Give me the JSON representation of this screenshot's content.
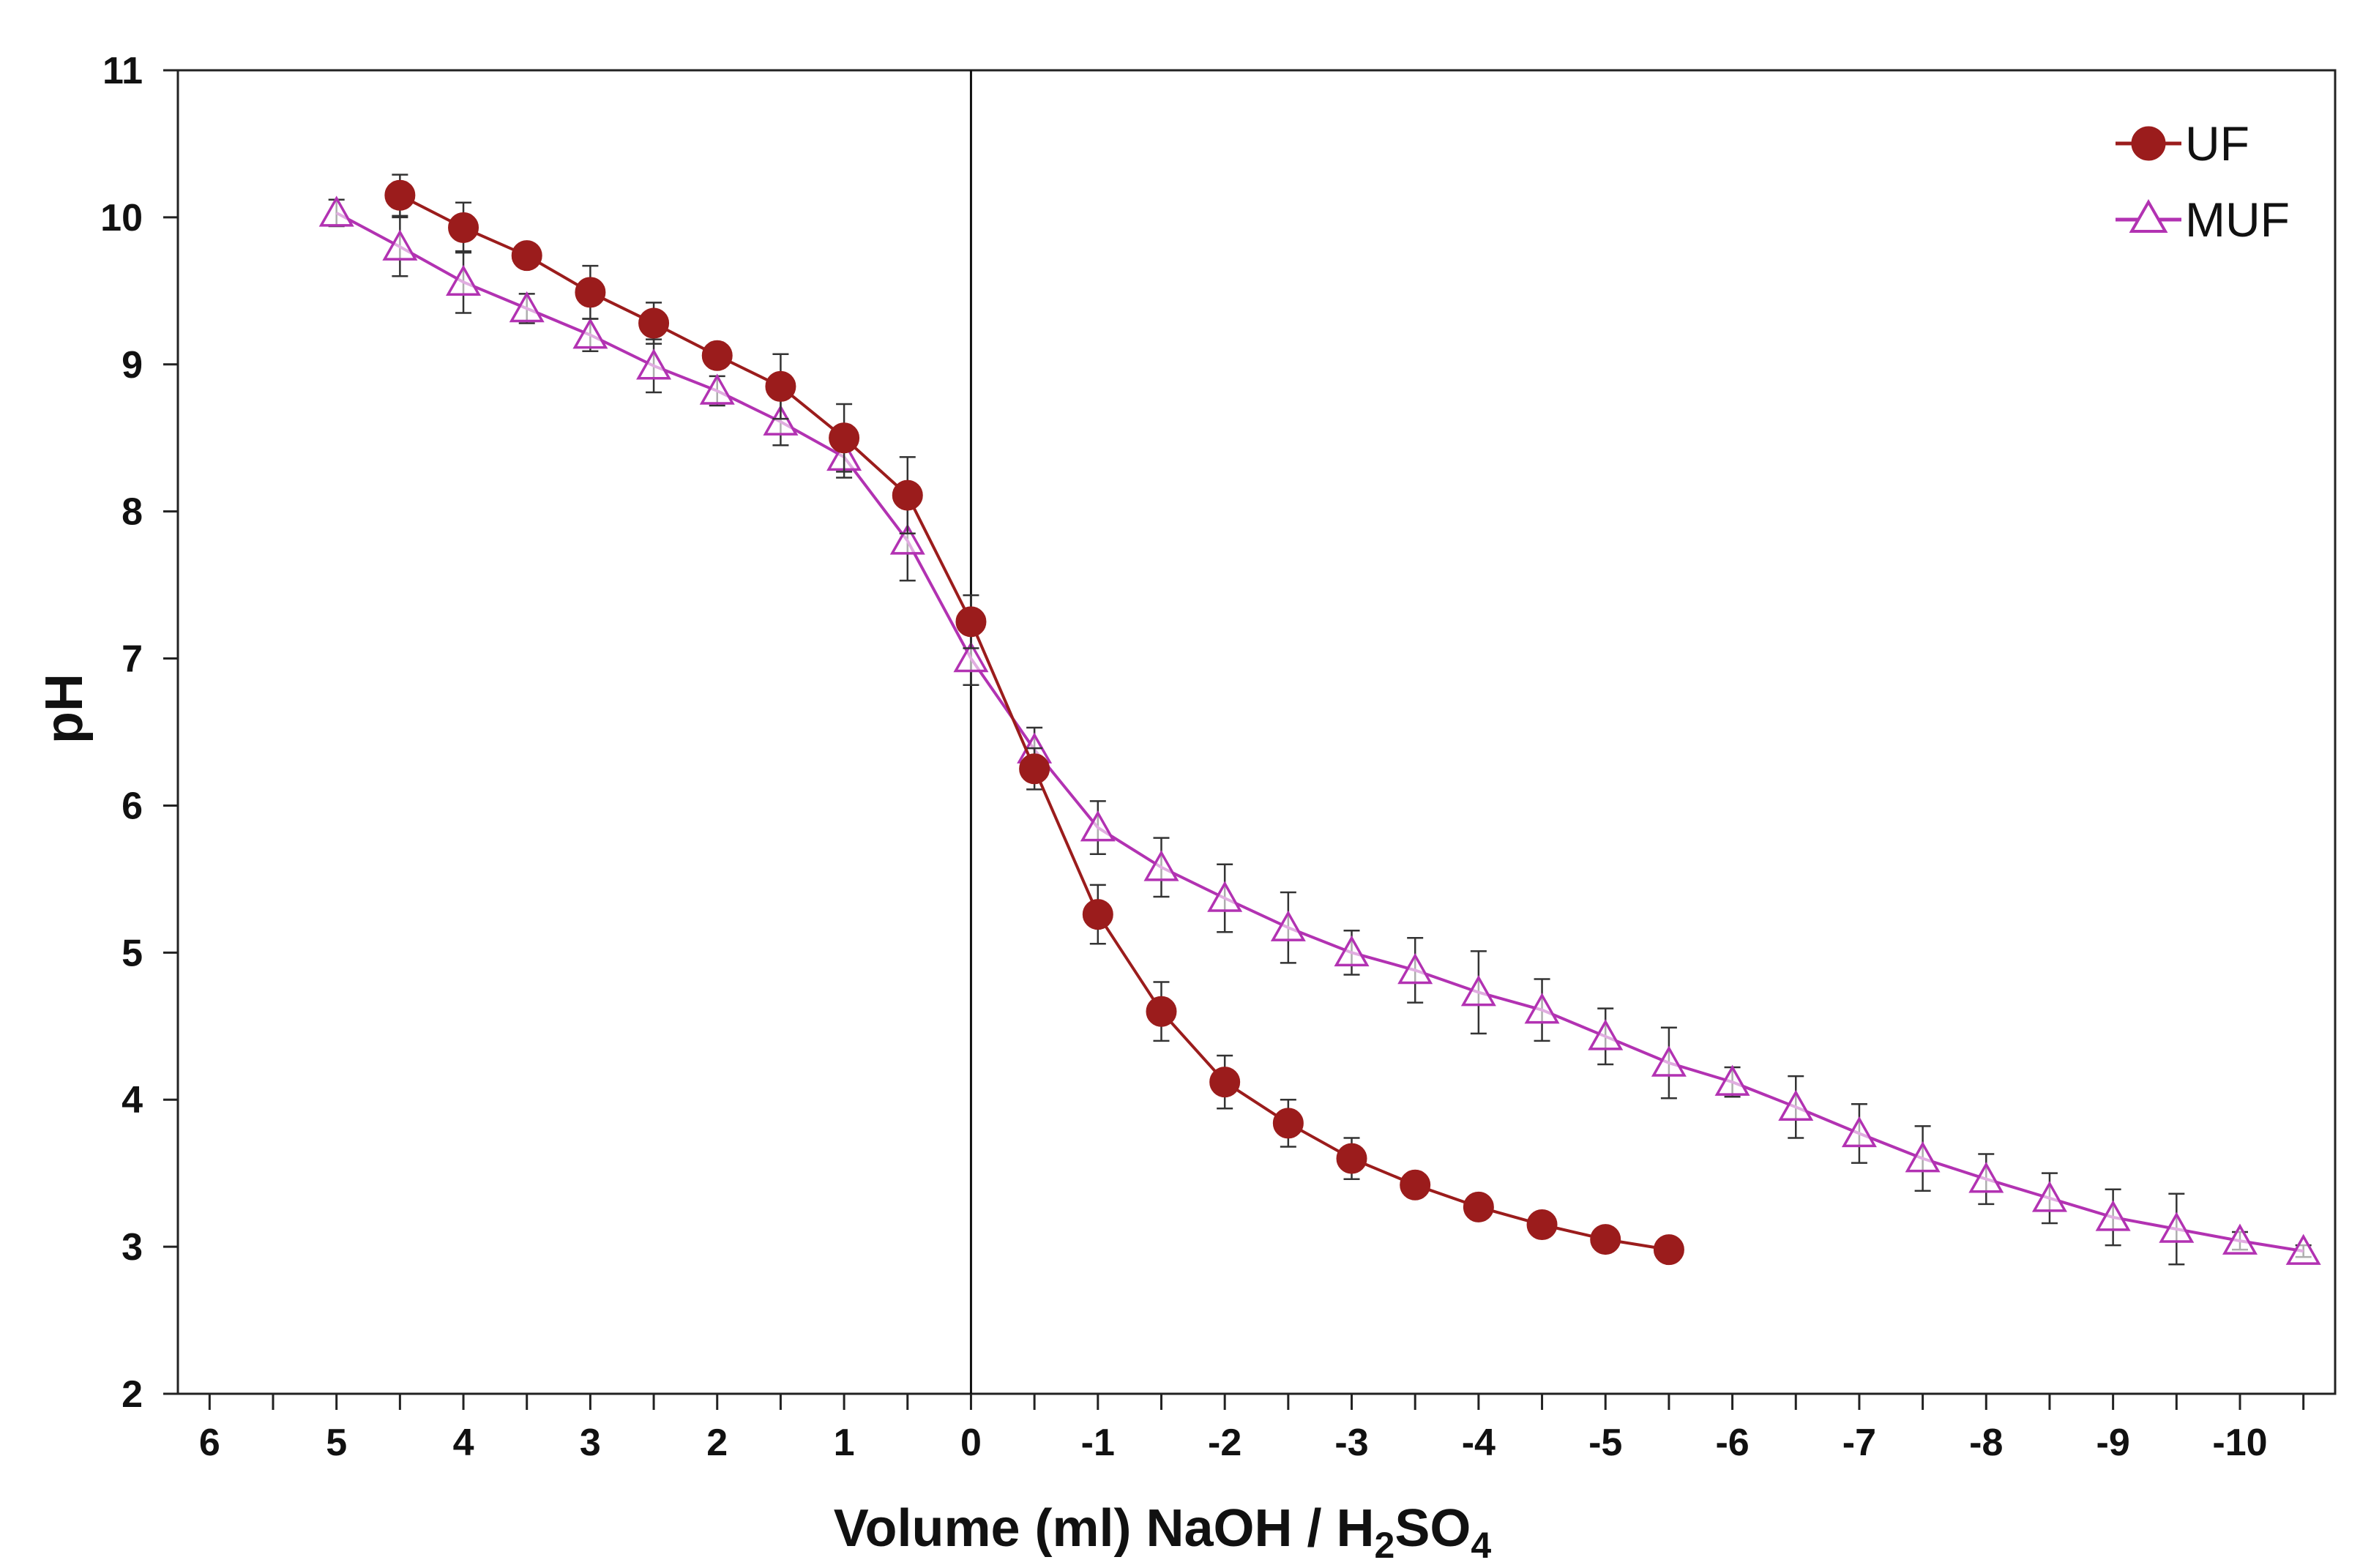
{
  "chart_data": {
    "type": "line",
    "title": "",
    "xlabel": "Volume (ml) NaOH / H2SO4",
    "xlabel_parts": [
      "Volume (ml) NaOH / H",
      "2",
      "SO",
      "4"
    ],
    "ylabel": "pH",
    "xlim": [
      6.25,
      -10.75
    ],
    "ylim": [
      2,
      11
    ],
    "x_ticks": [
      6,
      5,
      4,
      3,
      2,
      1,
      0,
      -1,
      -2,
      -3,
      -4,
      -5,
      -6,
      -7,
      -8,
      -9,
      -10
    ],
    "x_tick_labels": [
      "6",
      "5",
      "4",
      "3",
      "2",
      "1",
      "0",
      "-1",
      "-2",
      "-3",
      "-4",
      "-5",
      "-6",
      "-7",
      "-8",
      "-9",
      "-10"
    ],
    "y_ticks": [
      2,
      3,
      4,
      5,
      6,
      7,
      8,
      9,
      10,
      11
    ],
    "y_tick_labels": [
      "2",
      "3",
      "4",
      "5",
      "6",
      "7",
      "8",
      "9",
      "10",
      "11"
    ],
    "grid": false,
    "legend_position": "top-right",
    "reference_line_x": 0,
    "series": [
      {
        "name": "UF",
        "marker": "filled-circle",
        "color": "#9b1c1c",
        "x": [
          4.5,
          4.0,
          3.5,
          3.0,
          2.5,
          2.0,
          1.5,
          1.0,
          0.5,
          0.0,
          -0.5,
          -1.0,
          -1.5,
          -2.0,
          -2.5,
          -3.0,
          -3.5,
          -4.0,
          -4.5,
          -5.0,
          -5.5
        ],
        "y": [
          10.15,
          9.93,
          9.74,
          9.49,
          9.28,
          9.06,
          8.85,
          8.5,
          8.11,
          7.25,
          6.25,
          5.26,
          4.6,
          4.12,
          3.84,
          3.6,
          3.42,
          3.27,
          3.15,
          3.05,
          2.98
        ],
        "error": [
          0.14,
          0.17,
          0.04,
          0.18,
          0.14,
          0.05,
          0.22,
          0.23,
          0.26,
          0.18,
          0.14,
          0.2,
          0.2,
          0.18,
          0.16,
          0.14,
          0.04,
          0.04,
          0.04,
          0.03,
          0.03
        ]
      },
      {
        "name": "MUF",
        "marker": "open-triangle",
        "color": "#b232b2",
        "x": [
          5.0,
          4.5,
          4.0,
          3.5,
          3.0,
          2.5,
          2.0,
          1.5,
          1.0,
          0.5,
          0.0,
          -0.5,
          -1.0,
          -1.5,
          -2.0,
          -2.5,
          -3.0,
          -3.5,
          -4.0,
          -4.5,
          -5.0,
          -5.5,
          -6.0,
          -6.5,
          -7.0,
          -7.5,
          -8.0,
          -8.5,
          -9.0,
          -9.5,
          -10.0,
          -10.5
        ],
        "y": [
          10.03,
          9.8,
          9.56,
          9.38,
          9.2,
          8.99,
          8.82,
          8.61,
          8.37,
          7.8,
          7.0,
          6.38,
          5.85,
          5.58,
          5.37,
          5.17,
          5.0,
          4.88,
          4.73,
          4.61,
          4.43,
          4.25,
          4.12,
          3.95,
          3.77,
          3.6,
          3.46,
          3.33,
          3.2,
          3.12,
          3.04,
          2.97
        ],
        "error": [
          0.09,
          0.2,
          0.21,
          0.1,
          0.11,
          0.18,
          0.1,
          0.16,
          0.14,
          0.27,
          0.18,
          0.15,
          0.18,
          0.2,
          0.23,
          0.24,
          0.15,
          0.22,
          0.28,
          0.21,
          0.19,
          0.24,
          0.1,
          0.21,
          0.2,
          0.22,
          0.17,
          0.17,
          0.19,
          0.24,
          0.06,
          0.04
        ]
      }
    ]
  }
}
